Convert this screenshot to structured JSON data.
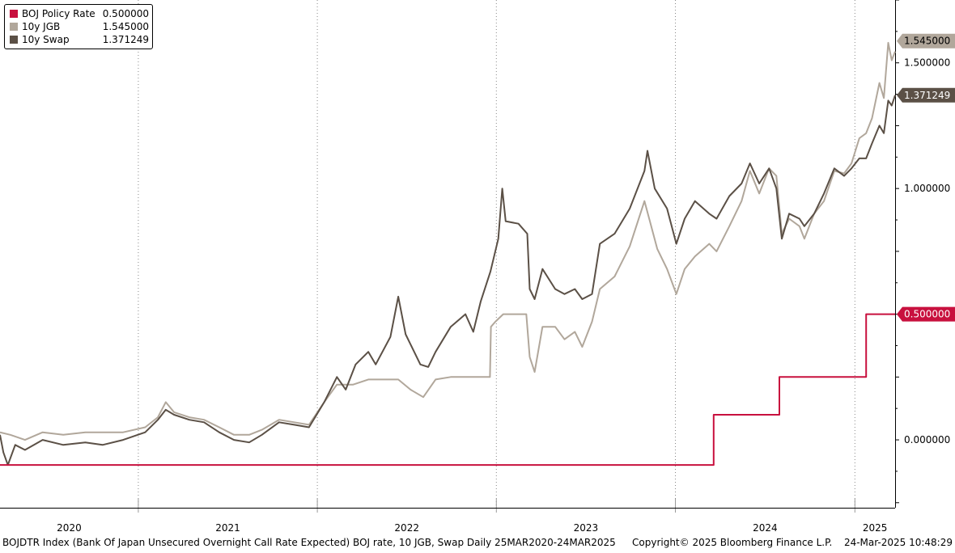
{
  "colors": {
    "boj": "#c8103e",
    "jgb": "#b1a79b",
    "swap": "#5b5046",
    "grid": "#888888",
    "axis": "#000000"
  },
  "legend": [
    {
      "name": "BOJ Policy Rate",
      "value": "0.500000",
      "color": "#c8103e"
    },
    {
      "name": "10y JGB",
      "value": "1.545000",
      "color": "#b1a79b"
    },
    {
      "name": "10y Swap",
      "value": "1.371249",
      "color": "#5b5046"
    }
  ],
  "footer": {
    "description": "BOJDTR Index (Bank Of Japan Unsecured Overnight Call Rate Expected) BOJ rate, 10 JGB, Swap  Daily 25MAR2020-24MAR2025",
    "copyright": "Copyright© 2025 Bloomberg Finance L.P.",
    "timestamp": "24-Mar-2025 10:48:29"
  },
  "chart_data": {
    "type": "line",
    "title": "",
    "xlabel": "",
    "ylabel": "",
    "x_range": [
      "2020-03-25",
      "2025-03-24"
    ],
    "ylim": [
      -0.27,
      1.75
    ],
    "y_ticks": [
      "0.000000",
      "0.500000",
      "1.000000",
      "1.500000"
    ],
    "x_tick_labels": [
      "2020",
      "2021",
      "2022",
      "2023",
      "2024",
      "2025"
    ],
    "x_tick_dates": [
      "2020-01-01",
      "2021-01-01",
      "2022-01-01",
      "2023-01-01",
      "2024-01-01",
      "2025-01-01"
    ],
    "legend_position": "top-left",
    "grid": "vertical dotted year lines",
    "last_value_labels": [
      {
        "series": "10y JGB",
        "value": "1.545000"
      },
      {
        "series": "10y Swap",
        "value": "1.371249"
      },
      {
        "series": "BOJ Policy Rate",
        "value": "0.500000"
      }
    ],
    "series": [
      {
        "name": "BOJ Policy Rate",
        "color": "#c8103e",
        "step": true,
        "points": [
          [
            "2020-03-25",
            -0.1
          ],
          [
            "2024-03-19",
            -0.1
          ],
          [
            "2024-03-19",
            0.1
          ],
          [
            "2024-07-31",
            0.1
          ],
          [
            "2024-07-31",
            0.25
          ],
          [
            "2025-01-24",
            0.25
          ],
          [
            "2025-01-24",
            0.5
          ],
          [
            "2025-03-24",
            0.5
          ]
        ]
      },
      {
        "name": "10y JGB",
        "color": "#b1a79b",
        "points": [
          [
            "2020-03-25",
            0.03
          ],
          [
            "2020-04-15",
            0.02
          ],
          [
            "2020-05-15",
            -0.0
          ],
          [
            "2020-06-20",
            0.03
          ],
          [
            "2020-08-01",
            0.02
          ],
          [
            "2020-09-15",
            0.03
          ],
          [
            "2020-10-20",
            0.03
          ],
          [
            "2020-12-01",
            0.03
          ],
          [
            "2021-01-15",
            0.05
          ],
          [
            "2021-02-10",
            0.09
          ],
          [
            "2021-02-26",
            0.15
          ],
          [
            "2021-03-15",
            0.11
          ],
          [
            "2021-04-15",
            0.09
          ],
          [
            "2021-05-15",
            0.08
          ],
          [
            "2021-06-15",
            0.05
          ],
          [
            "2021-07-15",
            0.02
          ],
          [
            "2021-08-15",
            0.02
          ],
          [
            "2021-09-10",
            0.04
          ],
          [
            "2021-10-15",
            0.08
          ],
          [
            "2021-11-15",
            0.07
          ],
          [
            "2021-12-15",
            0.06
          ],
          [
            "2022-01-15",
            0.15
          ],
          [
            "2022-02-10",
            0.22
          ],
          [
            "2022-03-15",
            0.22
          ],
          [
            "2022-04-15",
            0.24
          ],
          [
            "2022-05-15",
            0.24
          ],
          [
            "2022-06-15",
            0.24
          ],
          [
            "2022-07-10",
            0.2
          ],
          [
            "2022-08-05",
            0.17
          ],
          [
            "2022-08-30",
            0.24
          ],
          [
            "2022-09-30",
            0.25
          ],
          [
            "2022-10-30",
            0.25
          ],
          [
            "2022-12-19",
            0.25
          ],
          [
            "2022-12-21",
            0.45
          ],
          [
            "2022-12-30",
            0.47
          ],
          [
            "2023-01-15",
            0.5
          ],
          [
            "2023-02-01",
            0.5
          ],
          [
            "2023-02-25",
            0.5
          ],
          [
            "2023-03-03",
            0.5
          ],
          [
            "2023-03-10",
            0.33
          ],
          [
            "2023-03-20",
            0.27
          ],
          [
            "2023-04-05",
            0.45
          ],
          [
            "2023-05-01",
            0.45
          ],
          [
            "2023-05-20",
            0.4
          ],
          [
            "2023-06-10",
            0.43
          ],
          [
            "2023-06-25",
            0.37
          ],
          [
            "2023-07-15",
            0.47
          ],
          [
            "2023-07-31",
            0.6
          ],
          [
            "2023-08-30",
            0.65
          ],
          [
            "2023-09-30",
            0.77
          ],
          [
            "2023-10-30",
            0.95
          ],
          [
            "2023-11-10",
            0.87
          ],
          [
            "2023-11-25",
            0.76
          ],
          [
            "2023-12-15",
            0.68
          ],
          [
            "2024-01-03",
            0.58
          ],
          [
            "2024-01-20",
            0.68
          ],
          [
            "2024-02-10",
            0.73
          ],
          [
            "2024-03-10",
            0.78
          ],
          [
            "2024-03-25",
            0.75
          ],
          [
            "2024-04-20",
            0.85
          ],
          [
            "2024-05-15",
            0.95
          ],
          [
            "2024-06-01",
            1.07
          ],
          [
            "2024-06-20",
            0.98
          ],
          [
            "2024-07-10",
            1.08
          ],
          [
            "2024-07-25",
            1.05
          ],
          [
            "2024-08-05",
            0.82
          ],
          [
            "2024-08-20",
            0.88
          ],
          [
            "2024-09-10",
            0.85
          ],
          [
            "2024-09-20",
            0.8
          ],
          [
            "2024-10-10",
            0.9
          ],
          [
            "2024-10-30",
            0.95
          ],
          [
            "2024-11-20",
            1.07
          ],
          [
            "2024-12-10",
            1.06
          ],
          [
            "2024-12-25",
            1.1
          ],
          [
            "2025-01-10",
            1.2
          ],
          [
            "2025-01-24",
            1.22
          ],
          [
            "2025-02-05",
            1.28
          ],
          [
            "2025-02-20",
            1.42
          ],
          [
            "2025-03-01",
            1.36
          ],
          [
            "2025-03-10",
            1.58
          ],
          [
            "2025-03-17",
            1.51
          ],
          [
            "2025-03-24",
            1.545
          ]
        ]
      },
      {
        "name": "10y Swap",
        "color": "#5b5046",
        "points": [
          [
            "2020-03-25",
            0.02
          ],
          [
            "2020-04-01",
            -0.05
          ],
          [
            "2020-04-10",
            -0.1
          ],
          [
            "2020-04-25",
            -0.02
          ],
          [
            "2020-05-15",
            -0.04
          ],
          [
            "2020-06-20",
            -0.0
          ],
          [
            "2020-08-01",
            -0.02
          ],
          [
            "2020-09-15",
            -0.01
          ],
          [
            "2020-10-20",
            -0.02
          ],
          [
            "2020-12-01",
            -0.0
          ],
          [
            "2021-01-15",
            0.03
          ],
          [
            "2021-02-10",
            0.08
          ],
          [
            "2021-02-26",
            0.12
          ],
          [
            "2021-03-15",
            0.1
          ],
          [
            "2021-04-15",
            0.08
          ],
          [
            "2021-05-15",
            0.07
          ],
          [
            "2021-06-15",
            0.03
          ],
          [
            "2021-07-15",
            -0.0
          ],
          [
            "2021-08-15",
            -0.01
          ],
          [
            "2021-09-10",
            0.02
          ],
          [
            "2021-10-15",
            0.07
          ],
          [
            "2021-11-15",
            0.06
          ],
          [
            "2021-12-15",
            0.05
          ],
          [
            "2022-01-15",
            0.15
          ],
          [
            "2022-02-10",
            0.25
          ],
          [
            "2022-02-28",
            0.2
          ],
          [
            "2022-03-20",
            0.3
          ],
          [
            "2022-04-15",
            0.35
          ],
          [
            "2022-04-30",
            0.3
          ],
          [
            "2022-05-30",
            0.41
          ],
          [
            "2022-06-15",
            0.57
          ],
          [
            "2022-06-30",
            0.42
          ],
          [
            "2022-07-30",
            0.3
          ],
          [
            "2022-08-15",
            0.29
          ],
          [
            "2022-08-30",
            0.35
          ],
          [
            "2022-09-30",
            0.45
          ],
          [
            "2022-10-30",
            0.5
          ],
          [
            "2022-11-15",
            0.43
          ],
          [
            "2022-11-30",
            0.55
          ],
          [
            "2022-12-20",
            0.67
          ],
          [
            "2023-01-05",
            0.8
          ],
          [
            "2023-01-13",
            1.0
          ],
          [
            "2023-01-20",
            0.87
          ],
          [
            "2023-02-15",
            0.86
          ],
          [
            "2023-03-05",
            0.82
          ],
          [
            "2023-03-10",
            0.6
          ],
          [
            "2023-03-20",
            0.56
          ],
          [
            "2023-04-05",
            0.68
          ],
          [
            "2023-05-01",
            0.6
          ],
          [
            "2023-05-20",
            0.58
          ],
          [
            "2023-06-10",
            0.6
          ],
          [
            "2023-06-25",
            0.56
          ],
          [
            "2023-07-15",
            0.58
          ],
          [
            "2023-07-31",
            0.78
          ],
          [
            "2023-08-30",
            0.82
          ],
          [
            "2023-09-30",
            0.92
          ],
          [
            "2023-10-30",
            1.07
          ],
          [
            "2023-11-05",
            1.15
          ],
          [
            "2023-11-20",
            1.0
          ],
          [
            "2023-12-15",
            0.92
          ],
          [
            "2024-01-03",
            0.78
          ],
          [
            "2024-01-20",
            0.88
          ],
          [
            "2024-02-10",
            0.95
          ],
          [
            "2024-03-10",
            0.9
          ],
          [
            "2024-03-25",
            0.88
          ],
          [
            "2024-04-20",
            0.97
          ],
          [
            "2024-05-15",
            1.02
          ],
          [
            "2024-06-01",
            1.1
          ],
          [
            "2024-06-20",
            1.02
          ],
          [
            "2024-07-10",
            1.08
          ],
          [
            "2024-07-25",
            1.0
          ],
          [
            "2024-08-05",
            0.8
          ],
          [
            "2024-08-20",
            0.9
          ],
          [
            "2024-09-10",
            0.88
          ],
          [
            "2024-09-20",
            0.85
          ],
          [
            "2024-10-10",
            0.9
          ],
          [
            "2024-10-30",
            0.98
          ],
          [
            "2024-11-20",
            1.08
          ],
          [
            "2024-12-10",
            1.05
          ],
          [
            "2024-12-25",
            1.08
          ],
          [
            "2025-01-10",
            1.12
          ],
          [
            "2025-01-24",
            1.12
          ],
          [
            "2025-02-05",
            1.18
          ],
          [
            "2025-02-20",
            1.25
          ],
          [
            "2025-03-01",
            1.22
          ],
          [
            "2025-03-10",
            1.35
          ],
          [
            "2025-03-17",
            1.33
          ],
          [
            "2025-03-24",
            1.371249
          ]
        ]
      }
    ]
  }
}
